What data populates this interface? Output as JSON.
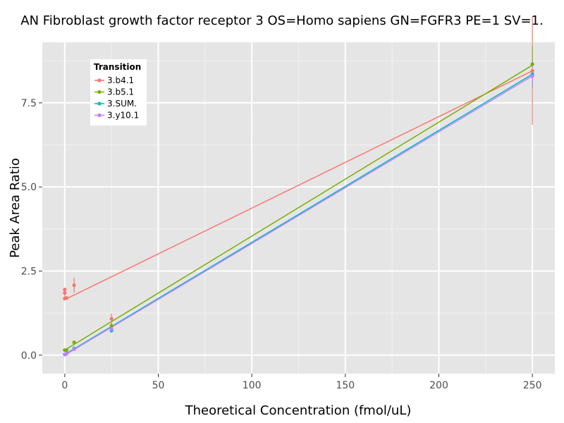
{
  "chart_data": {
    "type": "scatter",
    "title": "AN Fibroblast growth factor receptor 3 OS=Homo sapiens GN=FGFR3 PE=1 SV=1.",
    "xlabel": "Theoretical Concentration (fmol/uL)",
    "ylabel": "Peak Area Ratio",
    "xlim": [
      -12,
      262
    ],
    "ylim": [
      -0.55,
      9.3
    ],
    "x_ticks": [
      0,
      50,
      100,
      150,
      200,
      250
    ],
    "x_tick_labels": [
      "0",
      "50",
      "100",
      "150",
      "200",
      "250"
    ],
    "y_ticks": [
      0,
      2.5,
      5,
      7.5
    ],
    "y_tick_labels": [
      "0.0",
      "2.5",
      "5.0",
      "7.5"
    ],
    "grid": true,
    "legend": {
      "title": "Transition",
      "position": "top-left"
    },
    "series": [
      {
        "name": "3.b4.1",
        "color": "#f8766d",
        "points": [
          {
            "x": 0,
            "y": 1.85,
            "err": 0.15
          },
          {
            "x": 0,
            "y": 1.95,
            "err": 0.05
          },
          {
            "x": 0,
            "y": 1.68,
            "err": 0.05
          },
          {
            "x": 1,
            "y": 1.7,
            "err": 0.05
          },
          {
            "x": 5,
            "y": 2.08,
            "err": 0.22
          },
          {
            "x": 25,
            "y": 1.08,
            "err": 0.15
          },
          {
            "x": 250,
            "y": 8.45,
            "err": 1.6
          }
        ],
        "fit": [
          [
            0,
            1.65
          ],
          [
            250,
            8.45
          ]
        ]
      },
      {
        "name": "3.b5.1",
        "color": "#7cae00",
        "points": [
          {
            "x": 0,
            "y": 0.15,
            "err": 0.03
          },
          {
            "x": 1,
            "y": 0.15,
            "err": 0.03
          },
          {
            "x": 5,
            "y": 0.38,
            "err": 0.04
          },
          {
            "x": 25,
            "y": 0.87,
            "err": 0.08
          },
          {
            "x": 250,
            "y": 8.65,
            "err": 0.55
          }
        ],
        "fit": [
          [
            0,
            0.15
          ],
          [
            250,
            8.62
          ]
        ]
      },
      {
        "name": "3.SUM.",
        "color": "#00bfc4",
        "points": [
          {
            "x": 0,
            "y": 0.02,
            "err": 0.02
          },
          {
            "x": 1,
            "y": 0.05,
            "err": 0.02
          },
          {
            "x": 5,
            "y": 0.2,
            "err": 0.03
          },
          {
            "x": 25,
            "y": 0.73,
            "err": 0.06
          },
          {
            "x": 250,
            "y": 8.35,
            "err": 0.4
          }
        ],
        "fit": [
          [
            0,
            0.02
          ],
          [
            250,
            8.35
          ]
        ]
      },
      {
        "name": "3.y10.1",
        "color": "#c77cff",
        "points": [
          {
            "x": 0,
            "y": 0.02,
            "err": 0.02
          },
          {
            "x": 1,
            "y": 0.04,
            "err": 0.02
          },
          {
            "x": 5,
            "y": 0.18,
            "err": 0.03
          },
          {
            "x": 25,
            "y": 0.78,
            "err": 0.06
          },
          {
            "x": 250,
            "y": 8.3,
            "err": 0.3
          }
        ],
        "fit": [
          [
            0,
            0.0
          ],
          [
            250,
            8.3
          ]
        ]
      }
    ]
  }
}
